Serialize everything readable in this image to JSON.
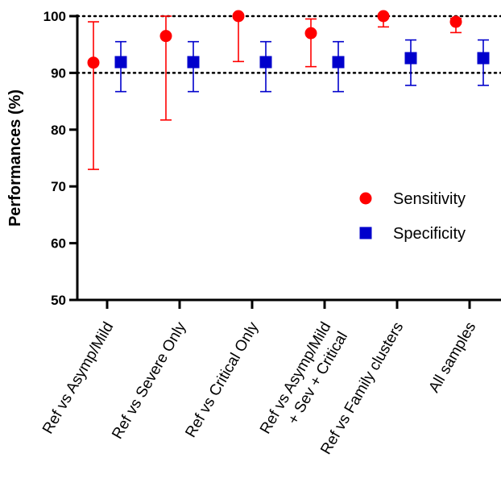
{
  "chart_data": {
    "type": "scatter",
    "ylabel": "Performances (%)",
    "ylim": [
      50,
      100
    ],
    "yticks": [
      "50",
      "60",
      "70",
      "80",
      "90",
      "100"
    ],
    "reference_lines": [
      90,
      100
    ],
    "categories": [
      [
        "Ref vs Asymp/Mild"
      ],
      [
        "Ref vs Severe Only"
      ],
      [
        "Ref vs Critical Only"
      ],
      [
        "Ref vs Asymp/Mild",
        "+ Sev + Critical"
      ],
      [
        "Ref vs Family clusters"
      ],
      [
        "All samples"
      ]
    ],
    "legend_position": "center-right",
    "series": [
      {
        "name": "Sensitivity",
        "color": "#ff0000",
        "marker": "circle",
        "values": [
          91.8,
          96.5,
          100.0,
          97.0,
          100.0,
          99.0
        ],
        "lower": [
          73.0,
          81.7,
          92.0,
          91.1,
          98.1,
          97.1
        ],
        "upper": [
          99.0,
          100.0,
          100.0,
          99.5,
          100.0,
          99.6
        ]
      },
      {
        "name": "Specificity",
        "color": "#0000cc",
        "marker": "square",
        "values": [
          91.9,
          91.9,
          91.9,
          91.9,
          92.6,
          92.6
        ],
        "lower": [
          86.7,
          86.7,
          86.7,
          86.7,
          87.8,
          87.8
        ],
        "upper": [
          95.5,
          95.5,
          95.5,
          95.5,
          95.8,
          95.8
        ]
      }
    ]
  }
}
